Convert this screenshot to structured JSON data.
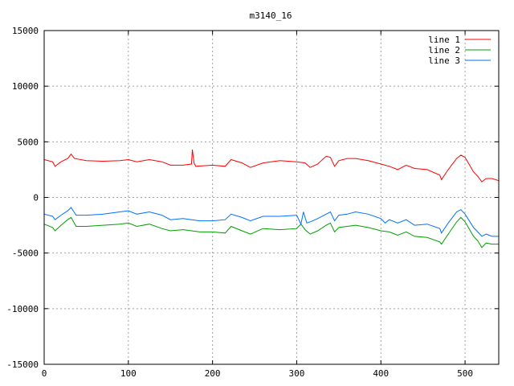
{
  "chart_data": {
    "type": "line",
    "title": "m3140_16",
    "xlabel": "",
    "ylabel": "",
    "xlim": [
      0,
      540
    ],
    "ylim": [
      -15000,
      15000
    ],
    "xticks": [
      0,
      100,
      200,
      300,
      400,
      500
    ],
    "yticks": [
      -15000,
      -10000,
      -5000,
      0,
      5000,
      10000,
      15000
    ],
    "grid": true,
    "legend_position": "top-right",
    "series": [
      {
        "name": "line 1",
        "color": "#ff0000",
        "points": [
          [
            0,
            3400
          ],
          [
            10,
            3200
          ],
          [
            13,
            2800
          ],
          [
            20,
            3200
          ],
          [
            28,
            3500
          ],
          [
            32,
            3900
          ],
          [
            36,
            3500
          ],
          [
            50,
            3300
          ],
          [
            70,
            3250
          ],
          [
            90,
            3300
          ],
          [
            100,
            3400
          ],
          [
            110,
            3200
          ],
          [
            125,
            3400
          ],
          [
            140,
            3200
          ],
          [
            150,
            2900
          ],
          [
            165,
            2900
          ],
          [
            175,
            3000
          ],
          [
            176,
            4300
          ],
          [
            178,
            3100
          ],
          [
            180,
            2800
          ],
          [
            200,
            2900
          ],
          [
            215,
            2800
          ],
          [
            222,
            3400
          ],
          [
            235,
            3100
          ],
          [
            245,
            2700
          ],
          [
            260,
            3100
          ],
          [
            280,
            3300
          ],
          [
            300,
            3200
          ],
          [
            310,
            3100
          ],
          [
            316,
            2700
          ],
          [
            325,
            3000
          ],
          [
            335,
            3700
          ],
          [
            340,
            3600
          ],
          [
            345,
            2800
          ],
          [
            350,
            3300
          ],
          [
            360,
            3500
          ],
          [
            370,
            3500
          ],
          [
            385,
            3300
          ],
          [
            400,
            3000
          ],
          [
            410,
            2800
          ],
          [
            420,
            2500
          ],
          [
            430,
            2900
          ],
          [
            440,
            2600
          ],
          [
            455,
            2500
          ],
          [
            470,
            2000
          ],
          [
            472,
            1600
          ],
          [
            480,
            2500
          ],
          [
            490,
            3500
          ],
          [
            495,
            3800
          ],
          [
            500,
            3600
          ],
          [
            510,
            2300
          ],
          [
            515,
            1900
          ],
          [
            520,
            1400
          ],
          [
            525,
            1700
          ],
          [
            532,
            1700
          ],
          [
            540,
            1500
          ]
        ]
      },
      {
        "name": "line 2",
        "color": "#00a000",
        "points": [
          [
            0,
            -2400
          ],
          [
            10,
            -2700
          ],
          [
            13,
            -3000
          ],
          [
            20,
            -2500
          ],
          [
            28,
            -2000
          ],
          [
            32,
            -1800
          ],
          [
            38,
            -2600
          ],
          [
            50,
            -2600
          ],
          [
            70,
            -2500
          ],
          [
            90,
            -2400
          ],
          [
            100,
            -2300
          ],
          [
            110,
            -2600
          ],
          [
            125,
            -2400
          ],
          [
            140,
            -2800
          ],
          [
            150,
            -3000
          ],
          [
            165,
            -2900
          ],
          [
            175,
            -3000
          ],
          [
            185,
            -3100
          ],
          [
            200,
            -3100
          ],
          [
            215,
            -3200
          ],
          [
            222,
            -2600
          ],
          [
            235,
            -3000
          ],
          [
            245,
            -3300
          ],
          [
            260,
            -2800
          ],
          [
            280,
            -2900
          ],
          [
            300,
            -2800
          ],
          [
            305,
            -2400
          ],
          [
            310,
            -2900
          ],
          [
            316,
            -3300
          ],
          [
            325,
            -3000
          ],
          [
            335,
            -2500
          ],
          [
            340,
            -2300
          ],
          [
            345,
            -3100
          ],
          [
            350,
            -2700
          ],
          [
            360,
            -2600
          ],
          [
            370,
            -2500
          ],
          [
            385,
            -2700
          ],
          [
            400,
            -3000
          ],
          [
            410,
            -3100
          ],
          [
            420,
            -3400
          ],
          [
            430,
            -3100
          ],
          [
            440,
            -3500
          ],
          [
            455,
            -3600
          ],
          [
            470,
            -4000
          ],
          [
            472,
            -4200
          ],
          [
            480,
            -3300
          ],
          [
            490,
            -2200
          ],
          [
            495,
            -1800
          ],
          [
            500,
            -2200
          ],
          [
            510,
            -3500
          ],
          [
            515,
            -3900
          ],
          [
            520,
            -4500
          ],
          [
            525,
            -4100
          ],
          [
            532,
            -4200
          ],
          [
            540,
            -4200
          ]
        ]
      },
      {
        "name": "line 3",
        "color": "#0070ff",
        "points": [
          [
            0,
            -1500
          ],
          [
            10,
            -1700
          ],
          [
            13,
            -2000
          ],
          [
            20,
            -1600
          ],
          [
            28,
            -1200
          ],
          [
            32,
            -900
          ],
          [
            38,
            -1600
          ],
          [
            50,
            -1600
          ],
          [
            70,
            -1500
          ],
          [
            90,
            -1300
          ],
          [
            100,
            -1200
          ],
          [
            110,
            -1500
          ],
          [
            125,
            -1300
          ],
          [
            140,
            -1600
          ],
          [
            150,
            -2000
          ],
          [
            165,
            -1900
          ],
          [
            175,
            -2000
          ],
          [
            185,
            -2100
          ],
          [
            200,
            -2100
          ],
          [
            215,
            -2000
          ],
          [
            222,
            -1500
          ],
          [
            235,
            -1800
          ],
          [
            245,
            -2100
          ],
          [
            260,
            -1700
          ],
          [
            280,
            -1700
          ],
          [
            300,
            -1600
          ],
          [
            305,
            -2400
          ],
          [
            308,
            -1300
          ],
          [
            312,
            -2300
          ],
          [
            316,
            -2200
          ],
          [
            325,
            -1900
          ],
          [
            335,
            -1500
          ],
          [
            340,
            -1300
          ],
          [
            345,
            -2100
          ],
          [
            350,
            -1600
          ],
          [
            360,
            -1500
          ],
          [
            370,
            -1300
          ],
          [
            385,
            -1500
          ],
          [
            400,
            -1900
          ],
          [
            405,
            -2300
          ],
          [
            410,
            -2000
          ],
          [
            420,
            -2300
          ],
          [
            430,
            -2000
          ],
          [
            440,
            -2500
          ],
          [
            455,
            -2400
          ],
          [
            470,
            -2800
          ],
          [
            472,
            -3200
          ],
          [
            480,
            -2300
          ],
          [
            490,
            -1300
          ],
          [
            495,
            -1100
          ],
          [
            500,
            -1500
          ],
          [
            510,
            -2700
          ],
          [
            515,
            -3100
          ],
          [
            520,
            -3500
          ],
          [
            525,
            -3300
          ],
          [
            532,
            -3500
          ],
          [
            540,
            -3500
          ]
        ]
      }
    ]
  }
}
